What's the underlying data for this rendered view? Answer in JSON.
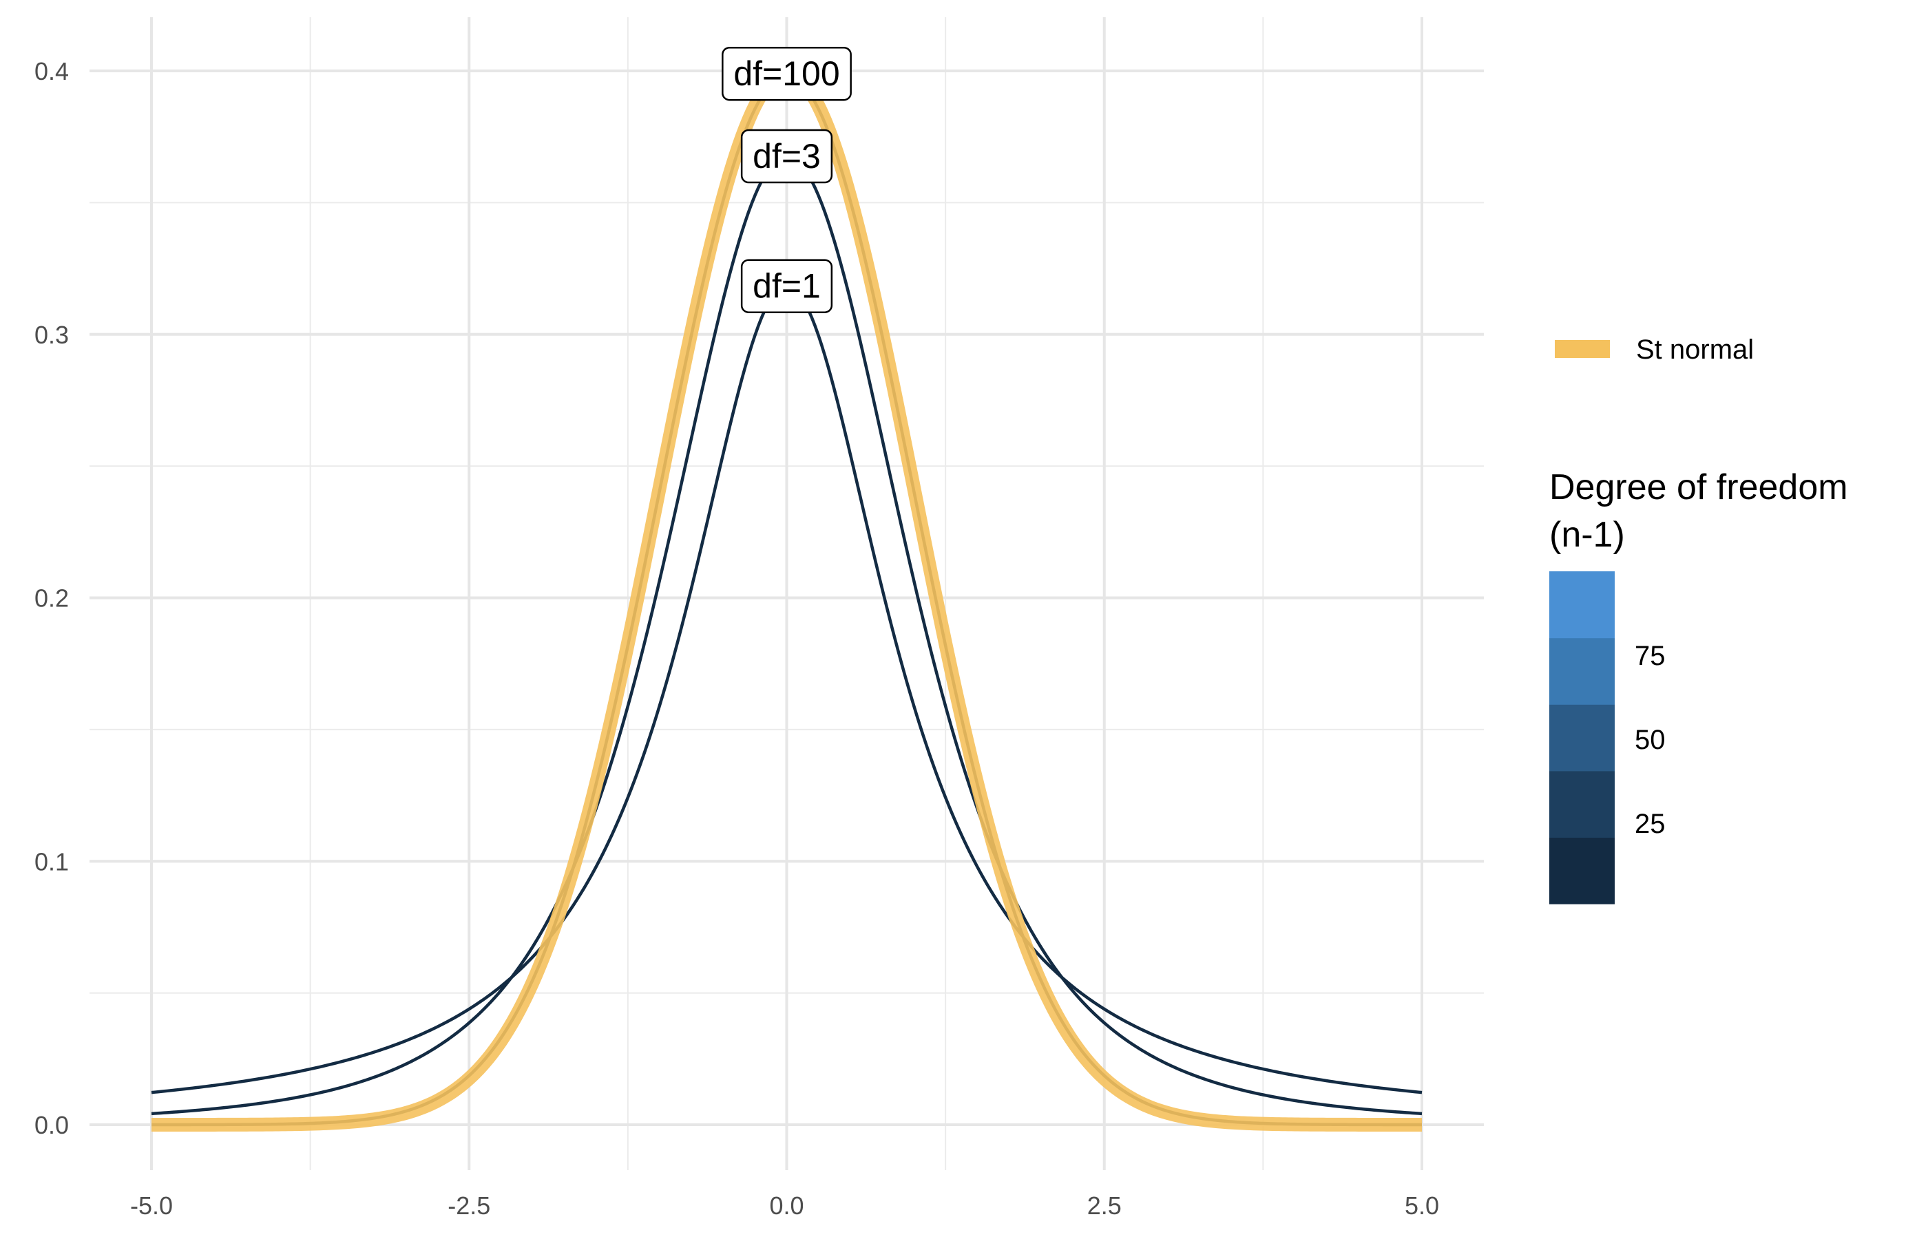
{
  "chart_data": {
    "type": "line",
    "title": "",
    "xlabel": "",
    "ylabel": "",
    "xlim": [
      -5,
      5
    ],
    "ylim": [
      0,
      0.4
    ],
    "x_ticks": [
      "-5.0",
      "-2.5",
      "0.0",
      "2.5",
      "5.0"
    ],
    "y_ticks": [
      "0.0",
      "0.1",
      "0.2",
      "0.3",
      "0.4"
    ],
    "grid": true,
    "series": [
      {
        "df": 1,
        "color": "#132B43"
      },
      {
        "df": 3,
        "color": "#132B43"
      },
      {
        "df": 100,
        "color": "#132B43"
      },
      {
        "name": "St normal",
        "color": "#F5C15D",
        "is_normal": true
      }
    ],
    "curve_labels": [
      {
        "text": "df=100",
        "x": 0,
        "y": 0.3989
      },
      {
        "text": "df=3",
        "x": 0,
        "y": 0.3676
      },
      {
        "text": "df=1",
        "x": 0,
        "y": 0.3183
      }
    ],
    "legend": {
      "placement": "right",
      "line_entry": {
        "label": "St normal",
        "color": "#F5C15D"
      },
      "colorbar": {
        "title": [
          "Degree of freedom",
          "(n-1)"
        ],
        "range": [
          1,
          100
        ],
        "breaks": [
          "25",
          "50",
          "75"
        ],
        "colors": [
          "#132B43",
          "#1D3F5F",
          "#2B5B87",
          "#3A7AB3",
          "#4A90D4"
        ]
      }
    }
  }
}
